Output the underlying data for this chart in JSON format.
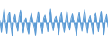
{
  "values": [
    0.2,
    -1.8,
    0.5,
    2.5,
    -0.3,
    -2.0,
    1.2,
    1.8,
    -0.8,
    -2.5,
    0.6,
    1.4,
    -0.5,
    -1.6,
    0.9,
    2.2,
    -0.4,
    -1.9,
    0.3,
    0.8,
    -1.2,
    -2.1,
    0.7,
    1.6,
    0.2,
    -0.9,
    -2.3,
    0.5,
    1.9,
    0.4,
    -0.6,
    -2.0,
    0.8,
    1.3,
    -0.3,
    -1.7,
    0.4,
    2.4,
    -0.2,
    -1.5,
    0.6,
    1.1,
    -0.7,
    -2.2,
    0.9,
    1.7,
    -0.5,
    -1.8,
    0.3,
    2.1,
    -0.4,
    -1.4,
    0.7,
    1.5,
    0.1,
    -1.0,
    -2.4,
    0.6,
    1.8,
    -0.3,
    -1.6,
    0.8,
    2.3,
    -0.2,
    -1.9,
    0.5,
    1.2,
    -0.6,
    -2.1,
    1.0,
    1.6,
    -0.4,
    -1.7,
    0.7,
    2.0,
    -0.5,
    -2.2,
    0.4,
    1.4,
    -0.8
  ],
  "line_color": "#5b9bd5",
  "fill_color": "#5b9bd5",
  "fill_alpha": 1.0,
  "background_color": "#ffffff",
  "linewidth": 0.7,
  "ylim": [
    -3.2,
    4.0
  ]
}
